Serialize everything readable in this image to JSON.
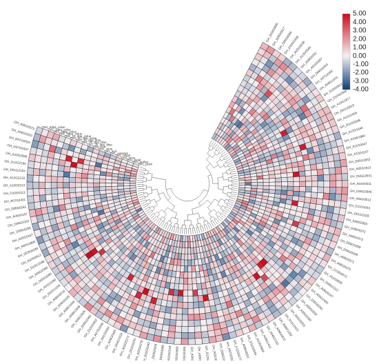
{
  "chart_data": {
    "type": "heatmap",
    "layout": "circular",
    "title": "",
    "samples": [
      "TM1_petal",
      "TM1_anther",
      "TM1_petal",
      "TM1_torus",
      "TM1_sepal",
      "TM1_episalys",
      "TM1_leaf",
      "TM1_stem",
      "TM1_root",
      "TM1_25_dpa_fiber",
      "TM1_20_dpa_fiber",
      "TM1_10_dpa_fiber",
      "TM1_20_dpa_ovlue",
      "TM1_10_dpa_ovlue",
      "TM1_5dpa_ovlue",
      "TM1_3dpa_ovlue",
      "TM1_1dpa_ovlue",
      "TM1_0dpa_ovlue"
    ],
    "genes": [
      "GH_D03G0660",
      "GH_A06G0017",
      "GH_D06G0084",
      "GH_D02G0339",
      "GH_A03G0036",
      "GH_A13G0044",
      "GH_A09G0261",
      "GH_A01G0287",
      "GH_D06G0343",
      "GH_A07G2302",
      "GH_A06G1310",
      "GH_D10G0913",
      "GH_D10G0344",
      "GH_A10G1877",
      "GH_D01G0813",
      "GH_A11G1004",
      "GH_D11G0348",
      "GH_A12G1640",
      "GH_A03G1860",
      "GH_A11G3047",
      "GH_A13G1107",
      "GH_D05G2833",
      "GH_A05G2613",
      "GH_D05G3541",
      "GH_A04G0511",
      "GH_D05G3540",
      "GH_A04G0512",
      "GH_D11G3264",
      "GH_D01G2028",
      "GH_A06G0350",
      "GH_D06G0372",
      "GH_A06G0372",
      "GH_D06G0359",
      "GH_D06G0349",
      "GH_A09G0371",
      "GH_A06G0373",
      "GH_D10G0073",
      "GH_A11G0845",
      "GH_D06G2212",
      "GH_A05G0247",
      "GH_A05G2430",
      "GH_D05G0261",
      "GH_A05G0252",
      "GH_A05G0260",
      "GH_A01G0253",
      "GH_D11G2421",
      "GH_A06G1352",
      "GH_A09G0810",
      "GH_A04G2133",
      "GH_A06G1411",
      "GH_A10G0969",
      "GH_D11G0944",
      "GH_A09G0532",
      "GH_A12G0177",
      "GH_A07G0321",
      "GH_D06G0319",
      "GH_A02G0284",
      "GH_D12G0291",
      "GH_A08G0348",
      "GH_A04G0211",
      "GH_D10G0326",
      "GH_D05G0380",
      "GH_A03G0319",
      "GH_D04G0309",
      "GH_D03G0204",
      "GH_D02G0342",
      "GH_A02G0278",
      "GH_D02G0241",
      "GH_A02G0272",
      "GH_D04G1624",
      "GH_A06G0345",
      "GH_D01G0262",
      "GH_A07G0258",
      "GH_D12G0402",
      "GH_D05G2461",
      "GH_A09G2525",
      "GH_D08G1648",
      "GH_A08G1636",
      "GH_D06G0195",
      "GH_A06G0210",
      "GH_D01G1259",
      "GH_A01G1190",
      "GH_D05G2095",
      "GH_A05G2065",
      "GH_D10G1048",
      "GH_A10G0913",
      "GH_D03G0236",
      "GH_A02G1803",
      "GH_A05G0167",
      "GH_D05G0206",
      "GH_D06G0162",
      "GH_A06G0157",
      "GH_D06G0161",
      "GH_A07G2421",
      "GH_D10G0113",
      "GH_A10G0313",
      "GH_A12G2133",
      "GH_D01G2164",
      "GH_D12G2180",
      "GH_A10G2066",
      "GH_D07G0337",
      "GH_D07G0029",
      "GH_A06G0320",
      "GH_A06G0373"
    ],
    "color_scale": {
      "min": -4.0,
      "max": 5.0,
      "ticks": [
        "5.00",
        "4.00",
        "3.00",
        "2.00",
        "1.00",
        "0.00",
        "-1.00",
        "-2.00",
        "-3.00",
        "-4.00"
      ],
      "low_color": "#0b3c7a",
      "mid_color": "#f4f0f2",
      "high_color": "#cf0a1c"
    }
  }
}
